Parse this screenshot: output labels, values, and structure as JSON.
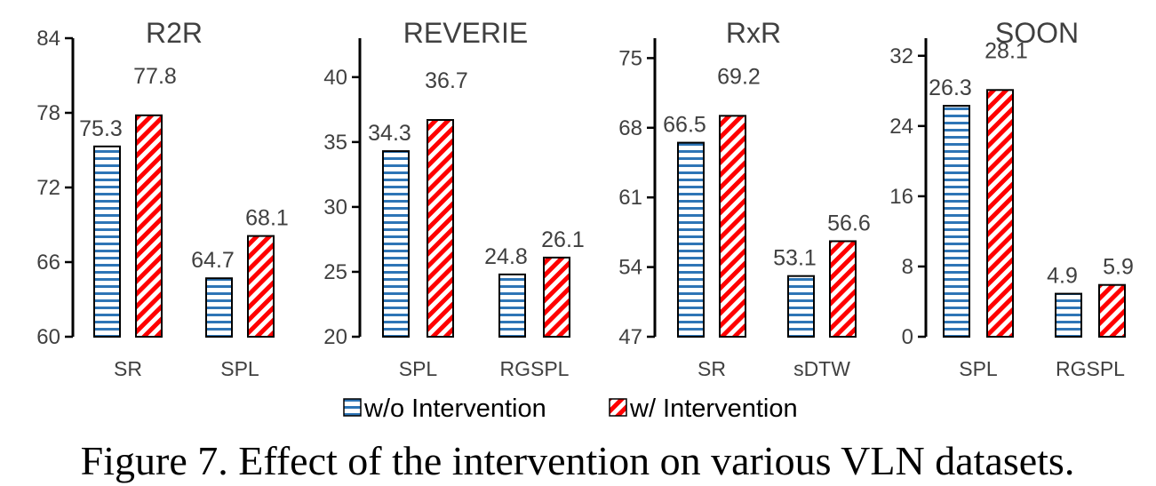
{
  "colors": {
    "series0": "#2e75b6",
    "series1": "#ff0000",
    "axis": "#000000",
    "text": "#404040"
  },
  "legend": {
    "items": [
      {
        "label": "w/o Intervention",
        "pattern": "horizontal-stripes"
      },
      {
        "label": "w/ Intervention",
        "pattern": "diagonal-stripes"
      }
    ]
  },
  "caption": "Figure 7. Effect of the intervention on various VLN datasets.",
  "chart_data": [
    {
      "type": "bar",
      "title": "R2R",
      "categories": [
        "SR",
        "SPL"
      ],
      "series": [
        {
          "name": "w/o Intervention",
          "values": [
            75.3,
            64.7
          ]
        },
        {
          "name": "w/ Intervention",
          "values": [
            77.8,
            68.1
          ]
        }
      ],
      "ylim": [
        60,
        84
      ],
      "yticks": [
        60,
        66,
        72,
        78,
        84
      ],
      "value_labels": [
        [
          "75.3",
          "64.7"
        ],
        [
          "77.8",
          "68.1"
        ]
      ],
      "xlabel": "",
      "ylabel": ""
    },
    {
      "type": "bar",
      "title": "REVERIE",
      "categories": [
        "SPL",
        "RGSPL"
      ],
      "series": [
        {
          "name": "w/o Intervention",
          "values": [
            34.3,
            24.8
          ]
        },
        {
          "name": "w/ Intervention",
          "values": [
            36.7,
            26.1
          ]
        }
      ],
      "ylim": [
        20,
        43
      ],
      "yticks": [
        20,
        25,
        30,
        35,
        40
      ],
      "value_labels": [
        [
          "34.3",
          "24.8"
        ],
        [
          "36.7",
          "26.1"
        ]
      ],
      "xlabel": "",
      "ylabel": ""
    },
    {
      "type": "bar",
      "title": "RxR",
      "categories": [
        "SR",
        "sDTW"
      ],
      "series": [
        {
          "name": "w/o Intervention",
          "values": [
            66.5,
            53.1
          ]
        },
        {
          "name": "w/ Intervention",
          "values": [
            69.2,
            56.6
          ]
        }
      ],
      "ylim": [
        47,
        77
      ],
      "yticks": [
        47,
        54,
        61,
        68,
        75
      ],
      "value_labels": [
        [
          "66.5",
          "53.1"
        ],
        [
          "69.2",
          "56.6"
        ]
      ],
      "xlabel": "",
      "ylabel": ""
    },
    {
      "type": "bar",
      "title": "SOON",
      "categories": [
        "SPL",
        "RGSPL"
      ],
      "series": [
        {
          "name": "w/o Intervention",
          "values": [
            26.3,
            4.9
          ]
        },
        {
          "name": "w/ Intervention",
          "values": [
            28.1,
            5.9
          ]
        }
      ],
      "ylim": [
        0,
        34
      ],
      "yticks": [
        0,
        8,
        16,
        24,
        32
      ],
      "value_labels": [
        [
          "26.3",
          "4.9"
        ],
        [
          "28.1",
          "5.9"
        ]
      ],
      "xlabel": "",
      "ylabel": ""
    }
  ]
}
